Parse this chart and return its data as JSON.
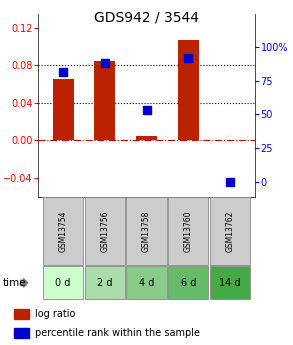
{
  "title": "GDS942 / 3544",
  "samples": [
    "GSM13754",
    "GSM13756",
    "GSM13758",
    "GSM13760",
    "GSM13762"
  ],
  "time_labels": [
    "0 d",
    "2 d",
    "4 d",
    "6 d",
    "14 d"
  ],
  "log_ratio": [
    0.065,
    0.085,
    0.005,
    0.107,
    0.0
  ],
  "percentile_rank": [
    82,
    88,
    53,
    92,
    0
  ],
  "bar_color": "#bb2200",
  "dot_color": "#0000cc",
  "ylim_left": [
    -0.06,
    0.135
  ],
  "ylim_right": [
    -11.25,
    125
  ],
  "yticks_left": [
    -0.04,
    0,
    0.04,
    0.08,
    0.12
  ],
  "yticks_right": [
    0,
    25,
    50,
    75,
    100
  ],
  "hline_y_left": [
    0.04,
    0.08
  ],
  "zero_line_color": "#cc0000",
  "sample_box_color": "#cccccc",
  "time_box_colors": [
    "#ccffcc",
    "#aaddaa",
    "#88cc88",
    "#66bb66",
    "#44aa44"
  ],
  "bar_width": 0.5,
  "dot_size": 30,
  "title_fontsize": 10,
  "tick_fontsize": 7,
  "legend_fontsize": 7
}
